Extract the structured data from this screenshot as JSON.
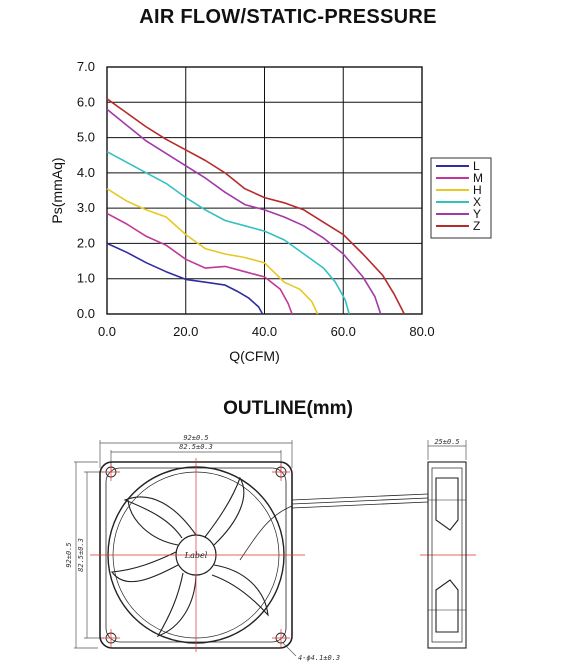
{
  "chart_data": {
    "type": "line",
    "title": "AIR FLOW/STATIC-PRESSURE",
    "xlabel": "Q(CFM)",
    "ylabel": "Ps(mmAq)",
    "xlim": [
      0,
      80
    ],
    "ylim": [
      0,
      7
    ],
    "x_ticks": [
      "0.0",
      "20.0",
      "40.0",
      "60.0",
      "80.0"
    ],
    "y_ticks": [
      "0.0",
      "1.0",
      "2.0",
      "3.0",
      "4.0",
      "5.0",
      "6.0",
      "7.0"
    ],
    "grid": true,
    "legend_position": "right",
    "series": [
      {
        "name": "L",
        "color": "#2e2e9e",
        "x": [
          0,
          5,
          10,
          15,
          20,
          25,
          30,
          33,
          36,
          38.5,
          39.5
        ],
        "y": [
          2.0,
          1.75,
          1.45,
          1.2,
          0.98,
          0.9,
          0.82,
          0.65,
          0.45,
          0.2,
          0.0
        ]
      },
      {
        "name": "M",
        "color": "#c0389a",
        "x": [
          0,
          5,
          10,
          15,
          20,
          25,
          30,
          35,
          40,
          44,
          46,
          47
        ],
        "y": [
          2.85,
          2.55,
          2.2,
          1.95,
          1.55,
          1.3,
          1.35,
          1.2,
          1.05,
          0.7,
          0.3,
          0.0
        ]
      },
      {
        "name": "H",
        "color": "#e6c826",
        "x": [
          0,
          5,
          10,
          15,
          20,
          25,
          30,
          35,
          40,
          45,
          49,
          52,
          53.5
        ],
        "y": [
          3.55,
          3.2,
          2.95,
          2.75,
          2.25,
          1.85,
          1.7,
          1.6,
          1.45,
          0.9,
          0.7,
          0.35,
          0.0
        ]
      },
      {
        "name": "X",
        "color": "#35c0c0",
        "x": [
          0,
          5,
          10,
          15,
          20,
          25,
          30,
          35,
          40,
          45,
          50,
          55,
          58,
          60.5,
          61.5
        ],
        "y": [
          4.6,
          4.3,
          4.0,
          3.7,
          3.3,
          2.95,
          2.65,
          2.5,
          2.35,
          2.1,
          1.7,
          1.3,
          0.9,
          0.4,
          0.0
        ]
      },
      {
        "name": "Y",
        "color": "#a13aa8",
        "x": [
          0,
          5,
          10,
          15,
          20,
          25,
          30,
          35,
          40,
          45,
          50,
          55,
          60,
          65,
          68,
          69.5
        ],
        "y": [
          5.8,
          5.35,
          4.9,
          4.55,
          4.2,
          3.85,
          3.45,
          3.1,
          2.95,
          2.75,
          2.5,
          2.15,
          1.7,
          1.05,
          0.5,
          0.0
        ]
      },
      {
        "name": "Z",
        "color": "#b82a2a",
        "x": [
          0,
          5,
          10,
          15,
          20,
          25,
          30,
          35,
          40,
          45,
          50,
          55,
          60,
          65,
          70,
          73,
          75.5
        ],
        "y": [
          6.1,
          5.7,
          5.3,
          4.95,
          4.65,
          4.35,
          4.0,
          3.55,
          3.3,
          3.15,
          2.95,
          2.6,
          2.25,
          1.7,
          1.1,
          0.55,
          0.0
        ]
      }
    ]
  },
  "outline": {
    "title": "OUTLINE(mm)",
    "dims": {
      "width_outer": "92±0.5",
      "width_hole": "82.5±0.3",
      "height_outer": "92±0.5",
      "height_hole": "82.5±0.3",
      "depth": "25±0.5",
      "holes": "4-ϕ4.1±0.3",
      "label": "Label"
    }
  }
}
